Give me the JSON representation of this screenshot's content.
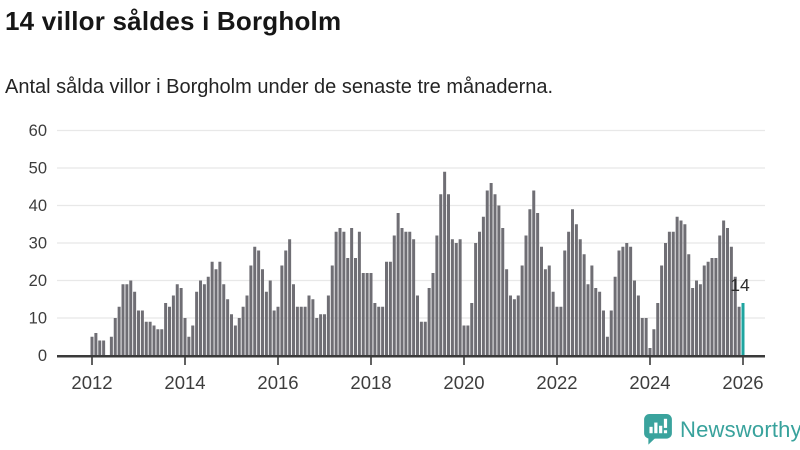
{
  "header": {
    "title": "14 villor såldes i Borgholm",
    "subtitle": "Antal sålda villor i Borgholm under de senaste tre månaderna."
  },
  "chart_data": {
    "type": "bar",
    "title": "14 villor såldes i Borgholm",
    "subtitle": "Antal sålda villor i Borgholm under de senaste tre månaderna.",
    "x_start_year": 2012,
    "x_interval": "month",
    "x_tick_years": [
      2012,
      2014,
      2016,
      2018,
      2020,
      2022,
      2024,
      2026
    ],
    "y_ticks": [
      0,
      10,
      20,
      30,
      40,
      50,
      60
    ],
    "ylim": [
      0,
      60
    ],
    "grid": true,
    "bar_color": "#6f6e74",
    "highlight_color": "#1fa5a0",
    "series": [
      {
        "name": "Antal sålda villor",
        "values": [
          5,
          6,
          4,
          4,
          0,
          5,
          10,
          13,
          19,
          19,
          20,
          17,
          12,
          12,
          9,
          9,
          8,
          7,
          7,
          14,
          13,
          16,
          19,
          18,
          10,
          5,
          8,
          17,
          20,
          19,
          21,
          25,
          23,
          25,
          19,
          15,
          11,
          8,
          10,
          13,
          16,
          24,
          29,
          28,
          23,
          17,
          20,
          12,
          13,
          24,
          28,
          31,
          19,
          13,
          13,
          13,
          16,
          15,
          10,
          11,
          11,
          16,
          24,
          33,
          34,
          33,
          26,
          34,
          26,
          33,
          22,
          22,
          22,
          14,
          13,
          13,
          25,
          25,
          32,
          38,
          34,
          33,
          33,
          31,
          16,
          9,
          9,
          18,
          22,
          32,
          43,
          49,
          43,
          31,
          30,
          31,
          8,
          8,
          14,
          30,
          33,
          37,
          44,
          46,
          43,
          40,
          34,
          23,
          16,
          15,
          16,
          24,
          32,
          39,
          44,
          38,
          29,
          23,
          24,
          17,
          13,
          13,
          28,
          33,
          39,
          35,
          31,
          27,
          19,
          24,
          18,
          17,
          12,
          5,
          12,
          21,
          28,
          29,
          30,
          29,
          20,
          16,
          10,
          10,
          2,
          7,
          14,
          24,
          30,
          33,
          33,
          37,
          36,
          35,
          27,
          18,
          20,
          19,
          24,
          25,
          26,
          26,
          32,
          36,
          34,
          29,
          21,
          13,
          14
        ]
      }
    ],
    "highlight": {
      "index": 168,
      "value": 14,
      "label": "14"
    }
  },
  "branding": {
    "logo_text": "Newsworthy",
    "logo_icon": "bar-chart-speech-bubble-icon",
    "logo_color": "#38a29c"
  },
  "colors": {
    "grid": "#e8e8e8",
    "axis": "#3a3a3a",
    "tick_text": "#3d3d3d",
    "annotation": "#2e2e2e",
    "title_text": "#161616"
  }
}
